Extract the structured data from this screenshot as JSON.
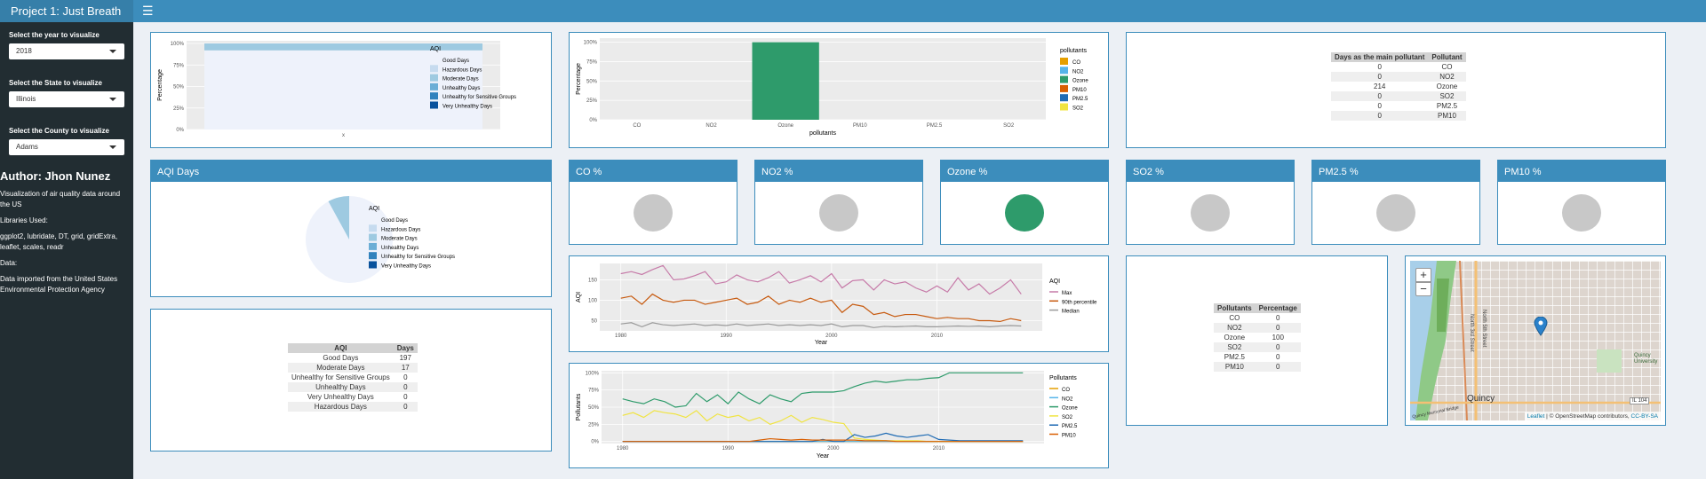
{
  "header": {
    "title": "Project 1: Just Breath",
    "menu_icon": "hamburger-icon"
  },
  "sidebar": {
    "year_label": "Select the year to visualize",
    "year_value": "2018",
    "state_label": "Select the State to visualize",
    "state_value": "Illinois",
    "county_label": "Select the County to visualize",
    "county_value": "Adams",
    "author": "Author: Jhon Nunez",
    "description": "Visualization of air quality data around the US",
    "libraries_label": "Libraries Used:",
    "libraries": "ggplot2, lubridate, DT, grid, gridExtra, leaflet, scales, readr",
    "data_label": "Data:",
    "data_text": "Data imported from the United States Environmental Protection Agency"
  },
  "aqi_categories": [
    "Good Days",
    "Hazardous Days",
    "Moderate Days",
    "Unhealthy Days",
    "Unhealthy for Sensitive Groups",
    "Very Unhealthy Days"
  ],
  "colors": {
    "c1": "#eef2fb",
    "c2": "#c6dbef",
    "c3": "#9ecae1",
    "c4": "#6baed6",
    "c5": "#3182bd",
    "c6": "#08519c",
    "ozone": "#2e9b6b",
    "pm25": "#1f6bb4",
    "pm10": "#d95f02",
    "so2": "#f0e442",
    "co": "#e69f00",
    "no2": "#56b4e9"
  },
  "chart_data": [
    {
      "type": "bar",
      "stacked": true,
      "legend_title": "AQI",
      "xlabel": "x",
      "ylabel": "Percentage",
      "yticks": [
        "0%",
        "25%",
        "50%",
        "75%",
        "100%"
      ],
      "categories": [
        "x"
      ],
      "series": [
        {
          "name": "Good Days",
          "values": [
            0.92
          ]
        },
        {
          "name": "Moderate Days",
          "values": [
            0.08
          ]
        }
      ]
    },
    {
      "type": "bar",
      "legend_title": "pollutants",
      "xlabel": "pollutants",
      "ylabel": "Percentage",
      "yticks": [
        "0%",
        "25%",
        "50%",
        "75%",
        "100%"
      ],
      "categories": [
        "CO",
        "NO2",
        "Ozone",
        "PM10",
        "PM2.5",
        "SO2"
      ],
      "values": [
        0,
        0,
        1,
        0,
        0,
        0
      ],
      "legend": [
        "CO",
        "NO2",
        "Ozone",
        "PM10",
        "PM2.5",
        "SO2"
      ]
    },
    {
      "type": "pie",
      "title": "AQI Days",
      "legend_title": "AQI",
      "slices": [
        {
          "name": "Good Days",
          "value": 197
        },
        {
          "name": "Moderate Days",
          "value": 17
        }
      ]
    },
    {
      "type": "line",
      "legend_title": "AQI",
      "xlabel": "Year",
      "ylabel": "AQI",
      "xticks": [
        "1980",
        "1990",
        "2000",
        "2010"
      ],
      "yticks": [
        "50",
        "100",
        "150"
      ],
      "x": [
        1980,
        1981,
        1982,
        1983,
        1984,
        1985,
        1986,
        1987,
        1988,
        1989,
        1990,
        1991,
        1992,
        1993,
        1994,
        1995,
        1996,
        1997,
        1998,
        1999,
        2000,
        2001,
        2002,
        2003,
        2004,
        2005,
        2006,
        2007,
        2008,
        2009,
        2010,
        2011,
        2012,
        2013,
        2014,
        2015,
        2016,
        2017,
        2018
      ],
      "series": [
        {
          "name": "Max",
          "values": [
            165,
            170,
            163,
            175,
            185,
            150,
            152,
            160,
            170,
            140,
            145,
            162,
            150,
            145,
            155,
            170,
            142,
            150,
            160,
            145,
            165,
            130,
            148,
            150,
            125,
            150,
            140,
            145,
            130,
            120,
            135,
            120,
            155,
            125,
            140,
            115,
            130,
            150,
            115
          ]
        },
        {
          "name": "90th percentile",
          "values": [
            105,
            110,
            90,
            115,
            100,
            95,
            100,
            100,
            90,
            95,
            100,
            105,
            90,
            95,
            110,
            90,
            100,
            95,
            105,
            95,
            100,
            70,
            90,
            85,
            65,
            70,
            60,
            65,
            65,
            60,
            55,
            58,
            55,
            55,
            50,
            50,
            48,
            55,
            50
          ]
        },
        {
          "name": "Median",
          "values": [
            42,
            45,
            35,
            45,
            40,
            38,
            40,
            42,
            38,
            40,
            38,
            42,
            38,
            40,
            42,
            38,
            40,
            38,
            40,
            38,
            42,
            35,
            38,
            38,
            33,
            36,
            35,
            36,
            37,
            35,
            35,
            36,
            37,
            36,
            37,
            35,
            37,
            38,
            37
          ]
        }
      ]
    },
    {
      "type": "line",
      "legend_title": "Pollutants",
      "xlabel": "Year",
      "ylabel": "Pollutants",
      "xticks": [
        "1980",
        "1990",
        "2000",
        "2010"
      ],
      "yticks": [
        "0%",
        "25%",
        "50%",
        "75%",
        "100%"
      ],
      "x": [
        1980,
        1981,
        1982,
        1983,
        1984,
        1985,
        1986,
        1987,
        1988,
        1989,
        1990,
        1991,
        1992,
        1993,
        1994,
        1995,
        1996,
        1997,
        1998,
        1999,
        2000,
        2001,
        2002,
        2003,
        2004,
        2005,
        2006,
        2007,
        2008,
        2009,
        2010,
        2011,
        2012,
        2013,
        2014,
        2015,
        2016,
        2017,
        2018
      ],
      "series": [
        {
          "name": "CO",
          "values": [
            0,
            0,
            0,
            0,
            0,
            0,
            0,
            0,
            0,
            0,
            0,
            0,
            0,
            0,
            0,
            0,
            0,
            0,
            0,
            0,
            0,
            0,
            0,
            0,
            0,
            0,
            0,
            0,
            0,
            0,
            0,
            0,
            0,
            0,
            0,
            0,
            0,
            0,
            0
          ]
        },
        {
          "name": "NO2",
          "values": [
            0,
            0,
            0,
            0,
            0,
            0,
            0,
            0,
            0,
            0,
            0,
            0,
            0,
            0,
            0,
            0,
            0,
            0,
            0,
            0,
            0,
            0,
            0,
            0,
            0,
            0,
            0,
            0,
            0,
            0,
            0,
            0,
            0,
            0,
            0,
            0,
            0,
            0,
            0
          ]
        },
        {
          "name": "Ozone",
          "values": [
            62,
            58,
            55,
            62,
            58,
            50,
            52,
            70,
            58,
            68,
            55,
            72,
            62,
            55,
            68,
            62,
            58,
            70,
            72,
            72,
            72,
            74,
            80,
            85,
            88,
            86,
            88,
            90,
            90,
            92,
            93,
            100,
            100,
            100,
            100,
            100,
            100,
            100,
            100
          ]
        },
        {
          "name": "SO2",
          "values": [
            38,
            42,
            35,
            45,
            42,
            40,
            35,
            45,
            30,
            40,
            35,
            38,
            30,
            35,
            25,
            30,
            38,
            28,
            35,
            32,
            28,
            26,
            5,
            3,
            2,
            1,
            1,
            1,
            1,
            0,
            0,
            0,
            0,
            0,
            0,
            0,
            0,
            0,
            0
          ]
        },
        {
          "name": "PM2.5",
          "values": [
            0,
            0,
            0,
            0,
            0,
            0,
            0,
            0,
            0,
            0,
            0,
            0,
            0,
            0,
            0,
            0,
            0,
            0,
            0,
            3,
            0,
            0,
            10,
            6,
            8,
            12,
            8,
            6,
            8,
            10,
            3,
            2,
            1,
            1,
            1,
            1,
            1,
            1,
            1
          ]
        },
        {
          "name": "PM10",
          "values": [
            0,
            0,
            0,
            0,
            0,
            0,
            0,
            0,
            0,
            0,
            0,
            0,
            0,
            2,
            4,
            3,
            2,
            3,
            2,
            2,
            2,
            2,
            2,
            1,
            1,
            1,
            0,
            0,
            0,
            0,
            0,
            0,
            0,
            0,
            0,
            0,
            0,
            0,
            0
          ]
        }
      ]
    }
  ],
  "main_pollutant_table": {
    "headers": [
      "Days as the main pollutant",
      "Pollutant"
    ],
    "rows": [
      [
        "0",
        "CO"
      ],
      [
        "0",
        "NO2"
      ],
      [
        "214",
        "Ozone"
      ],
      [
        "0",
        "SO2"
      ],
      [
        "0",
        "PM2.5"
      ],
      [
        "0",
        "PM10"
      ]
    ]
  },
  "aqi_table": {
    "headers": [
      "AQI",
      "Days"
    ],
    "rows": [
      [
        "Good Days",
        "197"
      ],
      [
        "Moderate Days",
        "17"
      ],
      [
        "Unhealthy for Sensitive Groups",
        "0"
      ],
      [
        "Unhealthy Days",
        "0"
      ],
      [
        "Very Unhealthy Days",
        "0"
      ],
      [
        "Hazardous Days",
        "0"
      ]
    ]
  },
  "pollutant_pct_table": {
    "headers": [
      "Pollutants",
      "Percentage"
    ],
    "rows": [
      [
        "CO",
        "0"
      ],
      [
        "NO2",
        "0"
      ],
      [
        "Ozone",
        "100"
      ],
      [
        "SO2",
        "0"
      ],
      [
        "PM2.5",
        "0"
      ],
      [
        "PM10",
        "0"
      ]
    ]
  },
  "gauges": [
    {
      "title": "CO %",
      "value": 0
    },
    {
      "title": "NO2 %",
      "value": 0
    },
    {
      "title": "Ozone %",
      "value": 100
    },
    {
      "title": "SO2 %",
      "value": 0
    },
    {
      "title": "PM2.5 %",
      "value": 0
    },
    {
      "title": "PM10 %",
      "value": 0
    }
  ],
  "map": {
    "zoom_in": "+",
    "zoom_out": "−",
    "city_label": "Quincy",
    "route_label": "IL 104",
    "university_label": "Quincy University",
    "street_labels": [
      "North 3rd Street",
      "North 5th Street"
    ],
    "bridge_label": "Quincy Memorial Bridge",
    "attribution_leaflet": "Leaflet",
    "attribution_osm": "© OpenStreetMap contributors,",
    "attribution_license": "CC-BY-SA"
  }
}
